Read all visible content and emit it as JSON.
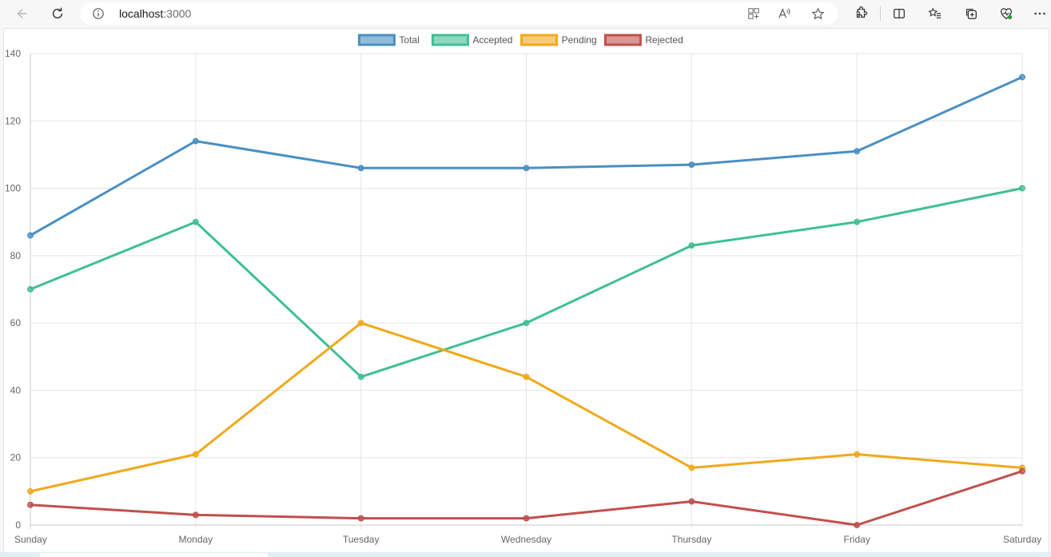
{
  "browser": {
    "url_host": "localhost",
    "url_port": ":3000"
  },
  "chart_data": {
    "type": "line",
    "categories": [
      "Sunday",
      "Monday",
      "Tuesday",
      "Wednesday",
      "Thursday",
      "Friday",
      "Saturday"
    ],
    "series": [
      {
        "name": "Total",
        "color": "#4a90c2",
        "values": [
          86,
          114,
          106,
          106,
          107,
          111,
          133
        ]
      },
      {
        "name": "Accepted",
        "color": "#3fbf94",
        "values": [
          70,
          90,
          44,
          60,
          83,
          90,
          100
        ]
      },
      {
        "name": "Pending",
        "color": "#f0a91c",
        "values": [
          10,
          21,
          60,
          44,
          17,
          21,
          17
        ]
      },
      {
        "name": "Rejected",
        "color": "#c0504d",
        "values": [
          6,
          3,
          2,
          2,
          7,
          0,
          16
        ]
      }
    ],
    "ylim": [
      0,
      140
    ],
    "yticks": [
      0,
      20,
      40,
      60,
      80,
      100,
      120,
      140
    ],
    "grid": true,
    "legend_position": "top-center"
  }
}
